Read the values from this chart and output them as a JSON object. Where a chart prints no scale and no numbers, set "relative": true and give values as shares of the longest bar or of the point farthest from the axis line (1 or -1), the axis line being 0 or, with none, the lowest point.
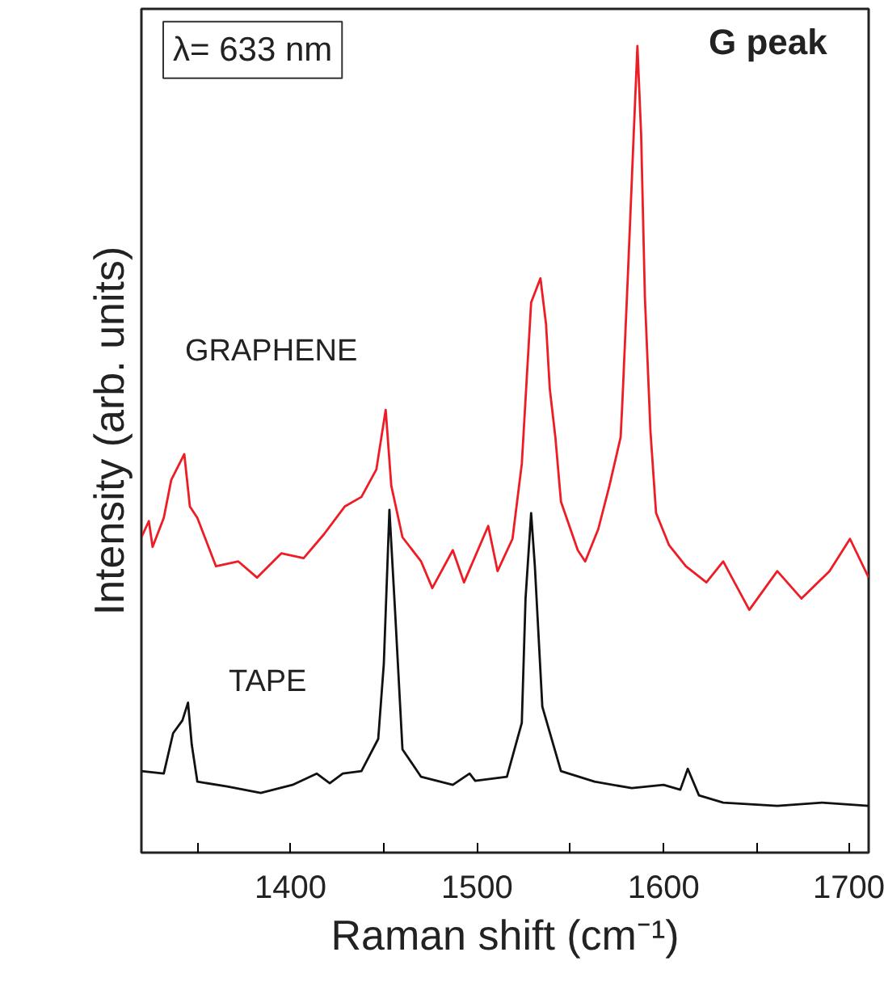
{
  "chart_data": {
    "type": "line",
    "relative": true,
    "xlabel": "Raman shift (cm⁻¹)",
    "ylabel": "Intensity (arb. units)",
    "xlim": [
      1320,
      1710
    ],
    "xticks": [
      {
        "value": 1350,
        "label": null
      },
      1400,
      {
        "value": 1450,
        "label": null
      },
      1500,
      {
        "value": 1550,
        "label": null
      },
      1600,
      {
        "value": 1650,
        "label": null
      },
      1700
    ],
    "annotations": [
      "λ= 633 nm",
      "G peak"
    ],
    "grid": false,
    "series": [
      {
        "name": "GRAPHENE",
        "color": "#ee1c24",
        "x": [
          1320,
          1324,
          1326,
          1332,
          1336,
          1343,
          1346,
          1350,
          1360,
          1372,
          1382,
          1395,
          1407,
          1418,
          1429,
          1438,
          1446,
          1451,
          1454,
          1460,
          1470,
          1476,
          1487,
          1493,
          1506,
          1511,
          1519,
          1524,
          1525,
          1529,
          1534,
          1537,
          1539,
          1542,
          1545,
          1554,
          1558,
          1565,
          1571,
          1577,
          1578,
          1581,
          1584,
          1586,
          1588,
          1590,
          1593,
          1596,
          1603,
          1612,
          1623,
          1632,
          1646,
          1661,
          1674,
          1689,
          1700,
          1710
        ],
        "values": [
          0.391,
          0.411,
          0.379,
          0.415,
          0.462,
          0.494,
          0.429,
          0.415,
          0.355,
          0.361,
          0.341,
          0.371,
          0.365,
          0.395,
          0.429,
          0.441,
          0.475,
          0.549,
          0.455,
          0.391,
          0.361,
          0.328,
          0.375,
          0.335,
          0.405,
          0.349,
          0.389,
          0.482,
          0.522,
          0.682,
          0.712,
          0.655,
          0.575,
          0.515,
          0.435,
          0.375,
          0.361,
          0.401,
          0.455,
          0.515,
          0.562,
          0.722,
          0.89,
          1.0,
          0.89,
          0.689,
          0.522,
          0.421,
          0.381,
          0.355,
          0.335,
          0.361,
          0.301,
          0.349,
          0.315,
          0.349,
          0.389,
          0.341
        ]
      },
      {
        "name": "TAPE",
        "color": "#111111",
        "x": [
          1320,
          1332,
          1337,
          1342,
          1345,
          1347,
          1350,
          1366,
          1384,
          1401,
          1414,
          1421,
          1428,
          1438,
          1447,
          1450,
          1453,
          1456,
          1460,
          1470,
          1487,
          1496,
          1499,
          1516,
          1524,
          1526,
          1529,
          1531,
          1535,
          1545,
          1563,
          1583,
          1600,
          1609,
          1613,
          1619,
          1632,
          1661,
          1685,
          1710
        ],
        "values": [
          0.101,
          0.098,
          0.148,
          0.164,
          0.186,
          0.134,
          0.088,
          0.082,
          0.074,
          0.084,
          0.098,
          0.086,
          0.098,
          0.101,
          0.141,
          0.234,
          0.425,
          0.301,
          0.128,
          0.094,
          0.084,
          0.098,
          0.089,
          0.094,
          0.161,
          0.315,
          0.421,
          0.355,
          0.181,
          0.101,
          0.088,
          0.08,
          0.084,
          0.078,
          0.104,
          0.071,
          0.062,
          0.058,
          0.062,
          0.058
        ]
      }
    ]
  }
}
